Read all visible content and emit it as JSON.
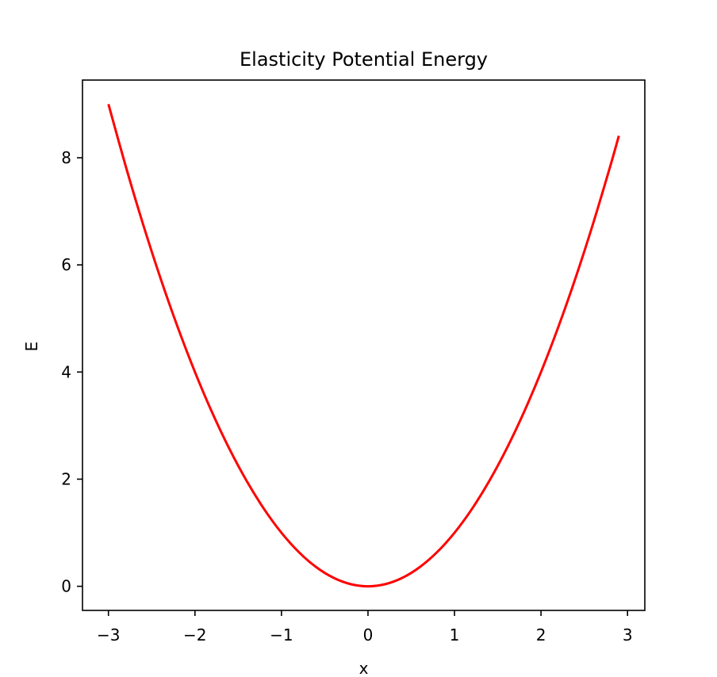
{
  "chart_data": {
    "type": "line",
    "title": "Elasticity Potential Energy",
    "xlabel": "x",
    "ylabel": "E",
    "xlim": [
      -3.3,
      3.2
    ],
    "ylim": [
      -0.45,
      9.45
    ],
    "xticks": [
      -3,
      -2,
      -1,
      0,
      1,
      2,
      3
    ],
    "xtick_labels": [
      "−3",
      "−2",
      "−1",
      "0",
      "1",
      "2",
      "3"
    ],
    "yticks": [
      0,
      2,
      4,
      6,
      8
    ],
    "ytick_labels": [
      "0",
      "2",
      "4",
      "6",
      "8"
    ],
    "grid": false,
    "legend": "none",
    "series": [
      {
        "color": "#ff0000",
        "x": [
          -3.0,
          -2.8,
          -2.6,
          -2.4,
          -2.2,
          -2.0,
          -1.8,
          -1.6,
          -1.4,
          -1.2,
          -1.0,
          -0.8,
          -0.6,
          -0.4,
          -0.2,
          0.0,
          0.2,
          0.4,
          0.6,
          0.8,
          1.0,
          1.2,
          1.4,
          1.6,
          1.8,
          2.0,
          2.2,
          2.4,
          2.6,
          2.8,
          2.9
        ],
        "y": [
          9.0,
          7.84,
          6.76,
          5.76,
          4.84,
          4.0,
          3.24,
          2.56,
          1.96,
          1.44,
          1.0,
          0.64,
          0.36,
          0.16,
          0.04,
          0.0,
          0.04,
          0.16,
          0.36,
          0.64,
          1.0,
          1.44,
          1.96,
          2.56,
          3.24,
          4.0,
          4.84,
          5.76,
          6.76,
          7.84,
          8.41
        ]
      }
    ]
  }
}
